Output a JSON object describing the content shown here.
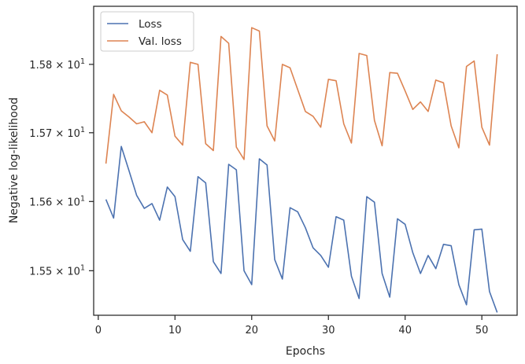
{
  "chart_data": {
    "type": "line",
    "title": "",
    "xlabel": "Epochs",
    "ylabel": "Negative log-likelihood",
    "xlim": [
      -0.6,
      54.6
    ],
    "ylim": [
      15.436,
      15.8855
    ],
    "y_scale": "log",
    "x_ticks": [
      0,
      10,
      20,
      30,
      40,
      50
    ],
    "x_tick_labels": [
      "0",
      "10",
      "20",
      "30",
      "40",
      "50"
    ],
    "y_ticks": [
      15.5,
      15.6,
      15.7,
      15.8
    ],
    "y_tick_labels": [
      {
        "mantissa": "1.55",
        "base": "10",
        "exp": "1"
      },
      {
        "mantissa": "1.56",
        "base": "10",
        "exp": "1"
      },
      {
        "mantissa": "1.57",
        "base": "10",
        "exp": "1"
      },
      {
        "mantissa": "1.58",
        "base": "10",
        "exp": "1"
      }
    ],
    "grid": false,
    "legend_position": "top-left",
    "x": [
      1,
      2,
      3,
      4,
      5,
      6,
      7,
      8,
      9,
      10,
      11,
      12,
      13,
      14,
      15,
      16,
      17,
      18,
      19,
      20,
      21,
      22,
      23,
      24,
      25,
      26,
      27,
      28,
      29,
      30,
      31,
      32,
      33,
      34,
      35,
      36,
      37,
      38,
      39,
      40,
      41,
      42,
      43,
      44,
      45,
      46,
      47,
      48,
      49,
      50,
      51,
      52
    ],
    "series": [
      {
        "name": "Loss",
        "color": "#4c72b0",
        "values": [
          15.603,
          15.576,
          15.68,
          15.645,
          15.609,
          15.59,
          15.597,
          15.573,
          15.621,
          15.607,
          15.545,
          15.528,
          15.636,
          15.627,
          15.513,
          15.496,
          15.654,
          15.646,
          15.5,
          15.48,
          15.662,
          15.653,
          15.516,
          15.488,
          15.591,
          15.585,
          15.562,
          15.533,
          15.522,
          15.505,
          15.578,
          15.573,
          15.492,
          15.46,
          15.607,
          15.599,
          15.496,
          15.462,
          15.575,
          15.567,
          15.526,
          15.496,
          15.522,
          15.503,
          15.538,
          15.536,
          15.48,
          15.451,
          15.559,
          15.56,
          15.47,
          15.44
        ]
      },
      {
        "name": "Val. loss",
        "color": "#dd8452",
        "values": [
          15.655,
          15.756,
          15.732,
          15.723,
          15.713,
          15.716,
          15.7,
          15.762,
          15.755,
          15.695,
          15.682,
          15.803,
          15.8,
          15.684,
          15.674,
          15.841,
          15.831,
          15.679,
          15.661,
          15.854,
          15.849,
          15.71,
          15.688,
          15.8,
          15.795,
          15.763,
          15.731,
          15.724,
          15.708,
          15.778,
          15.776,
          15.713,
          15.685,
          15.816,
          15.813,
          15.718,
          15.681,
          15.788,
          15.787,
          15.761,
          15.734,
          15.745,
          15.731,
          15.777,
          15.773,
          15.71,
          15.678,
          15.797,
          15.805,
          15.708,
          15.682,
          15.815
        ]
      }
    ]
  }
}
